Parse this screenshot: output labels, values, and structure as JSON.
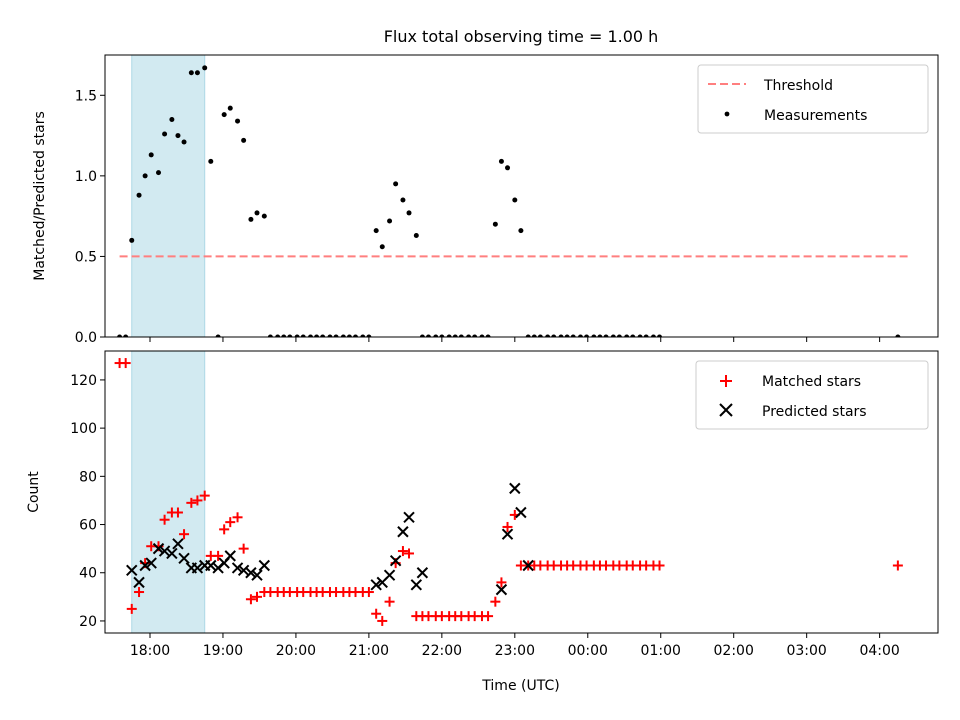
{
  "chart_data": [
    {
      "type": "scatter",
      "title": "Flux total observing time = 1.00 h",
      "xlabel": "",
      "ylabel": "Matched/Predicted stars",
      "x_type": "time",
      "xlim": [
        "17:23",
        "04:48"
      ],
      "ylim": [
        0,
        1.75
      ],
      "yticks": [
        0.0,
        0.5,
        1.0,
        1.5
      ],
      "ytick_labels": [
        "0.0",
        "0.5",
        "1.0",
        "1.5"
      ],
      "shaded_interval": {
        "start": "17:45",
        "end": "18:45",
        "color": "#add8e6"
      },
      "legend_position": "upper right",
      "threshold": {
        "name": "Threshold",
        "value": 0.5,
        "x_start": "17:35",
        "x_end": "04:25",
        "color": "#ff7f7f",
        "style": "dashed"
      },
      "series": [
        {
          "name": "Measurements",
          "color": "#000000",
          "marker": "dot",
          "x": [
            "17:35",
            "17:40",
            "17:45",
            "17:51",
            "17:56",
            "18:01",
            "18:07",
            "18:12",
            "18:18",
            "18:23",
            "18:28",
            "18:34",
            "18:39",
            "18:45",
            "18:50",
            "18:56",
            "19:01",
            "19:06",
            "19:12",
            "19:17",
            "19:23",
            "19:28",
            "19:34",
            "19:39",
            "19:45",
            "19:50",
            "19:55",
            "20:01",
            "20:06",
            "20:12",
            "20:17",
            "20:22",
            "20:28",
            "20:33",
            "20:39",
            "20:44",
            "20:49",
            "20:55",
            "21:00",
            "21:06",
            "21:11",
            "21:17",
            "21:22",
            "21:28",
            "21:33",
            "21:39",
            "21:44",
            "21:49",
            "21:55",
            "22:00",
            "22:06",
            "22:11",
            "22:16",
            "22:22",
            "22:27",
            "22:33",
            "22:38",
            "22:44",
            "22:49",
            "22:54",
            "23:00",
            "23:05",
            "23:11",
            "23:16",
            "23:21",
            "23:27",
            "23:32",
            "23:38",
            "23:43",
            "23:48",
            "23:54",
            "23:59",
            "00:05",
            "00:10",
            "00:15",
            "00:21",
            "00:26",
            "00:32",
            "00:37",
            "00:43",
            "00:48",
            "00:54",
            "00:59",
            "04:15"
          ],
          "values": [
            0.0,
            0.0,
            0.6,
            0.88,
            1.0,
            1.13,
            1.02,
            1.26,
            1.35,
            1.25,
            1.21,
            1.64,
            1.64,
            1.67,
            1.09,
            0.0,
            1.38,
            1.42,
            1.34,
            1.22,
            0.73,
            0.77,
            0.75,
            0.0,
            0.0,
            0.0,
            0.0,
            0.0,
            0.0,
            0.0,
            0.0,
            0.0,
            0.0,
            0.0,
            0.0,
            0.0,
            0.0,
            0.0,
            0.0,
            0.66,
            0.56,
            0.72,
            0.95,
            0.85,
            0.77,
            0.63,
            0.0,
            0.0,
            0.0,
            0.0,
            0.0,
            0.0,
            0.0,
            0.0,
            0.0,
            0.0,
            0.0,
            0.7,
            1.09,
            1.05,
            0.85,
            0.66,
            0.0,
            0.0,
            0.0,
            0.0,
            0.0,
            0.0,
            0.0,
            0.0,
            0.0,
            0.0,
            0.0,
            0.0,
            0.0,
            0.0,
            0.0,
            0.0,
            0.0,
            0.0,
            0.0,
            0.0,
            0.0,
            0.0
          ]
        }
      ]
    },
    {
      "type": "scatter",
      "title": "",
      "xlabel": "Time (UTC)",
      "ylabel": "Count",
      "x_type": "time",
      "xlim": [
        "17:23",
        "04:48"
      ],
      "ylim": [
        15,
        132
      ],
      "yticks": [
        20,
        40,
        60,
        80,
        100,
        120
      ],
      "ytick_labels": [
        "20",
        "40",
        "60",
        "80",
        "100",
        "120"
      ],
      "xtick_labels": [
        "18:00",
        "19:00",
        "20:00",
        "21:00",
        "22:00",
        "23:00",
        "00:00",
        "01:00",
        "02:00",
        "03:00",
        "04:00"
      ],
      "shaded_interval": {
        "start": "17:45",
        "end": "18:45",
        "color": "#add8e6"
      },
      "legend_position": "upper right",
      "series": [
        {
          "name": "Matched stars",
          "color": "#ff0000",
          "marker": "plus",
          "x": [
            "17:35",
            "17:40",
            "17:45",
            "17:51",
            "17:56",
            "18:01",
            "18:07",
            "18:12",
            "18:18",
            "18:23",
            "18:28",
            "18:34",
            "18:39",
            "18:45",
            "18:50",
            "18:56",
            "19:01",
            "19:06",
            "19:12",
            "19:17",
            "19:23",
            "19:28",
            "19:34",
            "19:39",
            "19:45",
            "19:50",
            "19:55",
            "20:01",
            "20:06",
            "20:12",
            "20:17",
            "20:22",
            "20:28",
            "20:33",
            "20:39",
            "20:44",
            "20:49",
            "20:55",
            "21:00",
            "21:06",
            "21:11",
            "21:17",
            "21:22",
            "21:28",
            "21:33",
            "21:39",
            "21:44",
            "21:49",
            "21:55",
            "22:00",
            "22:06",
            "22:11",
            "22:16",
            "22:22",
            "22:27",
            "22:33",
            "22:38",
            "22:44",
            "22:49",
            "22:54",
            "23:00",
            "23:05",
            "23:11",
            "23:16",
            "23:21",
            "23:27",
            "23:32",
            "23:38",
            "23:43",
            "23:48",
            "23:54",
            "23:59",
            "00:05",
            "00:10",
            "00:15",
            "00:21",
            "00:26",
            "00:32",
            "00:37",
            "00:43",
            "00:48",
            "00:54",
            "00:59",
            "04:15"
          ],
          "values": [
            127,
            127,
            25,
            32,
            44,
            51,
            51,
            62,
            65,
            65,
            56,
            69,
            70,
            72,
            47,
            47,
            58,
            61,
            63,
            50,
            29,
            30,
            32,
            32,
            32,
            32,
            32,
            32,
            32,
            32,
            32,
            32,
            32,
            32,
            32,
            32,
            32,
            32,
            32,
            23,
            20,
            28,
            44,
            49,
            48,
            22,
            22,
            22,
            22,
            22,
            22,
            22,
            22,
            22,
            22,
            22,
            22,
            28,
            36,
            59,
            64,
            43,
            43,
            43,
            43,
            43,
            43,
            43,
            43,
            43,
            43,
            43,
            43,
            43,
            43,
            43,
            43,
            43,
            43,
            43,
            43,
            43,
            43,
            43
          ]
        },
        {
          "name": "Predicted stars",
          "color": "#000000",
          "marker": "x",
          "x": [
            "17:45",
            "17:51",
            "17:56",
            "18:01",
            "18:07",
            "18:12",
            "18:18",
            "18:23",
            "18:28",
            "18:34",
            "18:39",
            "18:45",
            "18:50",
            "18:56",
            "19:01",
            "19:06",
            "19:12",
            "19:17",
            "19:23",
            "19:28",
            "19:34",
            "21:06",
            "21:11",
            "21:17",
            "21:22",
            "21:28",
            "21:33",
            "21:39",
            "21:44",
            "22:49",
            "22:54",
            "23:00",
            "23:05",
            "23:11"
          ],
          "values": [
            41,
            36,
            43,
            44,
            50,
            49,
            48,
            52,
            46,
            42,
            42,
            43,
            43,
            42,
            44,
            47,
            42,
            41,
            40,
            39,
            43,
            35,
            36,
            39,
            45,
            57,
            63,
            35,
            40,
            33,
            56,
            75,
            65,
            43
          ]
        }
      ]
    }
  ]
}
